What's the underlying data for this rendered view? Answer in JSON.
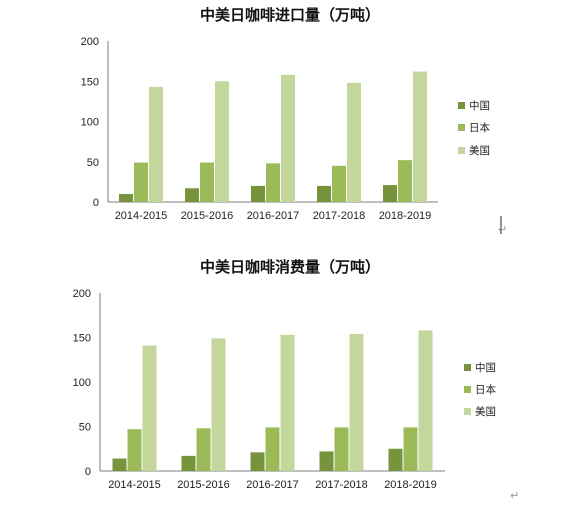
{
  "chart_data": [
    {
      "type": "bar",
      "title": "中美日咖啡进口量（万吨）",
      "categories": [
        "2014-2015",
        "2015-2016",
        "2016-2017",
        "2017-2018",
        "2018-2019"
      ],
      "series": [
        {
          "name": "中国",
          "color": "#77933c",
          "values": [
            10,
            17,
            20,
            20,
            21
          ]
        },
        {
          "name": "日本",
          "color": "#9bbb59",
          "values": [
            49,
            49,
            48,
            45,
            52
          ]
        },
        {
          "name": "美国",
          "color": "#c3d69b",
          "values": [
            143,
            150,
            158,
            148,
            162
          ]
        }
      ],
      "ylim": [
        0,
        200
      ],
      "yticks": [
        0,
        50,
        100,
        150,
        200
      ],
      "legend": "right",
      "grid": false
    },
    {
      "type": "bar",
      "title": "中美日咖啡消费量（万吨）",
      "categories": [
        "2014-2015",
        "2015-2016",
        "2016-2017",
        "2017-2018",
        "2018-2019"
      ],
      "series": [
        {
          "name": "中国",
          "color": "#77933c",
          "values": [
            14,
            17,
            21,
            22,
            25
          ]
        },
        {
          "name": "日本",
          "color": "#9bbb59",
          "values": [
            47,
            48,
            49,
            49,
            49
          ]
        },
        {
          "name": "美国",
          "color": "#c3d69b",
          "values": [
            141,
            149,
            153,
            154,
            158
          ]
        }
      ],
      "ylim": [
        0,
        200
      ],
      "yticks": [
        0,
        50,
        100,
        150,
        200
      ],
      "legend": "right",
      "grid": false
    }
  ],
  "marks": {
    "paragraph": "↵"
  }
}
